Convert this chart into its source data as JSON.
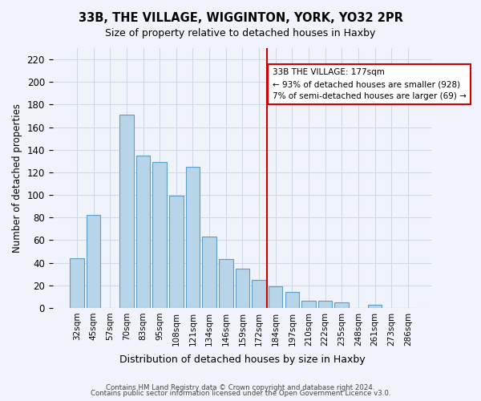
{
  "title": "33B, THE VILLAGE, WIGGINTON, YORK, YO32 2PR",
  "subtitle": "Size of property relative to detached houses in Haxby",
  "xlabel": "Distribution of detached houses by size in Haxby",
  "ylabel": "Number of detached properties",
  "bar_labels": [
    "32sqm",
    "45sqm",
    "57sqm",
    "70sqm",
    "83sqm",
    "95sqm",
    "108sqm",
    "121sqm",
    "134sqm",
    "146sqm",
    "159sqm",
    "172sqm",
    "184sqm",
    "197sqm",
    "210sqm",
    "222sqm",
    "235sqm",
    "248sqm",
    "261sqm",
    "273sqm",
    "286sqm"
  ],
  "bar_values": [
    44,
    82,
    0,
    171,
    135,
    129,
    99,
    125,
    63,
    43,
    35,
    25,
    19,
    14,
    6,
    6,
    5,
    0,
    3,
    0,
    0
  ],
  "bar_color": "#b8d4e8",
  "bar_edge_color": "#5a9dc8",
  "grid_color": "#d0d8e8",
  "background_color": "#f0f4fa",
  "reference_line_x": 11.5,
  "reference_label": "33B THE VILLAGE: 177sqm",
  "annotation_line1": "← 93% of detached houses are smaller (928)",
  "annotation_line2": "7% of semi-detached houses are larger (69) →",
  "annotation_box_color": "#ffffff",
  "annotation_box_edge": "#cc0000",
  "reference_line_color": "#cc0000",
  "ylim": [
    0,
    230
  ],
  "yticks": [
    0,
    20,
    40,
    60,
    80,
    100,
    120,
    140,
    160,
    180,
    200,
    220
  ],
  "footer1": "Contains HM Land Registry data © Crown copyright and database right 2024.",
  "footer2": "Contains public sector information licensed under the Open Government Licence v3.0."
}
